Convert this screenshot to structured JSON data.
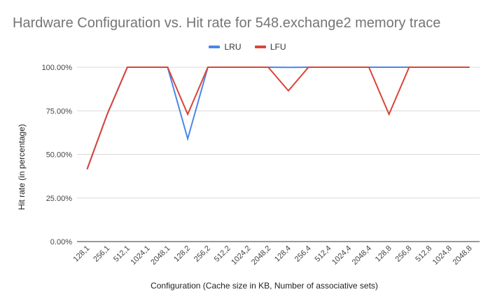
{
  "chart_data": {
    "type": "line",
    "title": "Hardware Configuration vs. Hit rate for 548.exchange2 memory trace",
    "xlabel": "Configuration (Cache size in KB, Number of associative sets)",
    "ylabel": "Hit rate (in percentage)",
    "categories": [
      "128,1",
      "256,1",
      "512,1",
      "1024,1",
      "2048,1",
      "128,2",
      "256,2",
      "512,2",
      "1024,2",
      "2048,2",
      "128,4",
      "256,4",
      "512,4",
      "1024,4",
      "2048,4",
      "128,8",
      "256,8",
      "512,8",
      "1024,8",
      "2048,8"
    ],
    "ylim": [
      0,
      100
    ],
    "yticks": [
      "0.00%",
      "25.00%",
      "50.00%",
      "75.00%",
      "100.00%"
    ],
    "grid": true,
    "legend_position": "top",
    "series": [
      {
        "name": "LRU",
        "color": "#4a86e8",
        "values": [
          41.5,
          73,
          100,
          100,
          100,
          59,
          100,
          100,
          100,
          100,
          99.9,
          100,
          100,
          100,
          100,
          100,
          100,
          100,
          100,
          100
        ]
      },
      {
        "name": "LFU",
        "color": "#db4437",
        "values": [
          41.5,
          73,
          100,
          100,
          100,
          73,
          100,
          100,
          100,
          100,
          86.5,
          100,
          100,
          100,
          100,
          73,
          100,
          100,
          100,
          100
        ]
      }
    ]
  }
}
